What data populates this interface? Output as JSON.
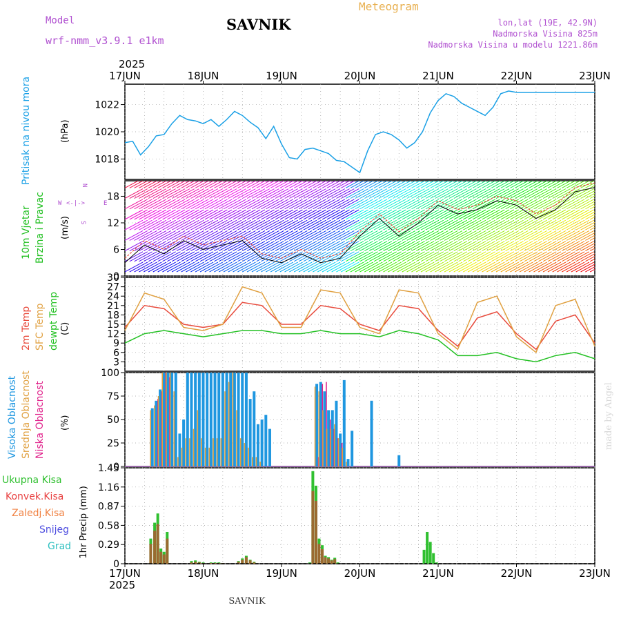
{
  "header": {
    "model_label": "Model",
    "model_name": "wrf-nmm_v3.9.1 e1km",
    "station": "SAVNIK",
    "meteogram_label": "Meteogram",
    "lonlat": "lon,lat (19E, 42.9N)",
    "altitude": "Nadmorska Visina 825m",
    "model_altitude": "Nadmorska Visina u modelu 1221.86m",
    "year": "2025",
    "footer_station": "SAVNIK",
    "credit": "made by Angel"
  },
  "colors": {
    "pressure": "#1aa0e6",
    "temp2m": "#e84a3c",
    "sfc": "#e0a040",
    "dewpt": "#22c022",
    "high_cloud": "#1f97e0",
    "mid_cloud": "#e0a040",
    "low_cloud": "#e0208a",
    "total_precip": "#30c030",
    "convective": "#e84040",
    "frozen": "#f08040",
    "snow": "#5050e0",
    "hail": "#30c0c0",
    "title_purple": "#b050d0",
    "meteogram_orange": "#e8b050"
  },
  "chart_data": [
    {
      "panel": "pressure",
      "type": "line",
      "ylabel": "(hPa)",
      "side_labels": [
        "Pritisak na nivou mora"
      ],
      "yticks": [
        1018,
        1020,
        1022
      ],
      "ylim": [
        1016.5,
        1023.5
      ],
      "x_day_ticks": [
        "17JUN",
        "18JUN",
        "19JUN",
        "20JUN",
        "21JUN",
        "22JUN",
        "23JUN"
      ],
      "x": [
        0,
        0.1,
        0.2,
        0.3,
        0.4,
        0.5,
        0.6,
        0.7,
        0.8,
        0.9,
        1.0,
        1.1,
        1.2,
        1.3,
        1.4,
        1.5,
        1.6,
        1.7,
        1.8,
        1.9,
        2.0,
        2.1,
        2.2,
        2.3,
        2.4,
        2.5,
        2.6,
        2.7,
        2.8,
        2.9,
        3.0,
        3.1,
        3.2,
        3.3,
        3.4,
        3.5,
        3.6,
        3.7,
        3.8,
        3.9,
        4.0,
        4.1,
        4.2,
        4.3,
        4.4,
        4.5,
        4.6,
        4.7,
        4.8,
        4.9,
        5.0,
        5.1,
        5.2,
        5.3,
        5.4,
        5.5,
        5.6,
        5.7,
        5.8,
        5.9,
        6.0
      ],
      "values": [
        1019.2,
        1019.3,
        1018.3,
        1018.9,
        1019.7,
        1019.8,
        1020.6,
        1021.2,
        1020.9,
        1020.8,
        1020.6,
        1020.9,
        1020.4,
        1020.9,
        1021.5,
        1021.2,
        1020.7,
        1020.3,
        1019.5,
        1020.4,
        1019.1,
        1018.1,
        1018.0,
        1018.7,
        1018.8,
        1018.6,
        1018.4,
        1017.9,
        1017.8,
        1017.4,
        1017.0,
        1018.6,
        1019.8,
        1020.0,
        1019.8,
        1019.4,
        1018.8,
        1019.2,
        1020.0,
        1021.4,
        1022.3,
        1022.8,
        1022.6,
        1022.1,
        1021.8,
        1021.5,
        1021.2,
        1021.8,
        1022.8,
        1023.0,
        1022.9,
        1022.9,
        1022.9,
        1022.9,
        1022.9,
        1022.9,
        1022.9,
        1022.9,
        1022.9,
        1022.9,
        1022.9
      ]
    },
    {
      "panel": "wind",
      "type": "line",
      "ylabel": "(m/s)",
      "side_labels": [
        "10m Vjetar",
        "Brzina i Pravac"
      ],
      "compass": [
        "N",
        "E",
        "S",
        "W"
      ],
      "yticks": [
        0,
        6,
        12,
        18
      ],
      "ylim": [
        0,
        21.5
      ],
      "x": [
        0,
        0.25,
        0.5,
        0.75,
        1.0,
        1.25,
        1.5,
        1.75,
        2.0,
        2.25,
        2.5,
        2.75,
        3.0,
        3.25,
        3.5,
        3.75,
        4.0,
        4.25,
        4.5,
        4.75,
        5.0,
        5.25,
        5.5,
        5.75,
        6.0
      ],
      "speed": [
        3,
        7,
        5,
        8,
        6,
        7,
        8,
        4,
        3,
        5,
        3,
        4,
        9,
        13,
        9,
        12,
        16,
        14,
        15,
        17,
        16,
        13,
        15,
        19,
        20
      ],
      "gust": [
        4,
        8,
        6,
        9,
        7,
        8,
        9,
        5,
        4,
        6,
        4,
        5,
        10,
        14,
        10,
        13,
        17,
        15,
        16,
        18,
        17,
        14,
        16,
        20,
        21
      ]
    },
    {
      "panel": "temperature",
      "type": "line",
      "ylabel": "(C)",
      "yticks": [
        3,
        6,
        9,
        12,
        15,
        18,
        21,
        24,
        27,
        30
      ],
      "ylim": [
        0,
        30
      ],
      "x": [
        0,
        0.25,
        0.5,
        0.75,
        1.0,
        1.25,
        1.5,
        1.75,
        2.0,
        2.25,
        2.5,
        2.75,
        3.0,
        3.25,
        3.5,
        3.75,
        4.0,
        4.25,
        4.5,
        4.75,
        5.0,
        5.25,
        5.5,
        5.75,
        6.0
      ],
      "series": [
        {
          "name": "2m Temp",
          "values": [
            14,
            21,
            20,
            15,
            14,
            15,
            22,
            21,
            15,
            15,
            21,
            20,
            15,
            13,
            21,
            20,
            13,
            8,
            17,
            19,
            12,
            7,
            16,
            18,
            9
          ]
        },
        {
          "name": "SFC Temp",
          "values": [
            13,
            25,
            23,
            14,
            13,
            15,
            27,
            25,
            14,
            14,
            26,
            25,
            14,
            12,
            26,
            25,
            12,
            7,
            22,
            24,
            11,
            6,
            21,
            23,
            8
          ]
        },
        {
          "name": "dewpt Temp",
          "values": [
            9,
            12,
            13,
            12,
            11,
            12,
            13,
            13,
            12,
            12,
            13,
            12,
            12,
            11,
            13,
            12,
            10,
            5,
            5,
            6,
            4,
            3,
            5,
            6,
            4
          ]
        }
      ]
    },
    {
      "panel": "clouds",
      "type": "bar",
      "ylabel": "(%)",
      "yticks": [
        0,
        25,
        50,
        75,
        100
      ],
      "ylim": [
        0,
        100
      ],
      "x": [
        0.35,
        0.4,
        0.45,
        0.5,
        0.55,
        0.6,
        0.65,
        0.7,
        0.75,
        0.8,
        0.85,
        0.9,
        0.95,
        1.0,
        1.05,
        1.1,
        1.15,
        1.2,
        1.25,
        1.3,
        1.35,
        1.4,
        1.45,
        1.5,
        1.55,
        1.6,
        1.65,
        1.7,
        1.75,
        1.8,
        1.85,
        2.45,
        2.5,
        2.55,
        2.6,
        2.65,
        2.7,
        2.75,
        2.8,
        2.85,
        2.9,
        3.15,
        3.5
      ],
      "series": [
        {
          "name": "Visoka Oblacnost",
          "values": [
            62,
            70,
            82,
            100,
            100,
            100,
            100,
            35,
            50,
            100,
            100,
            100,
            100,
            100,
            100,
            100,
            100,
            100,
            100,
            100,
            100,
            100,
            100,
            100,
            100,
            72,
            80,
            45,
            50,
            55,
            40,
            88,
            90,
            80,
            60,
            60,
            70,
            35,
            92,
            8,
            38,
            70,
            12
          ]
        },
        {
          "name": "Srednja Oblacnost",
          "values": [
            60,
            65,
            75,
            100,
            100,
            100,
            80,
            10,
            20,
            30,
            30,
            40,
            60,
            30,
            20,
            20,
            30,
            30,
            30,
            80,
            90,
            100,
            60,
            30,
            25,
            20,
            10,
            10,
            5,
            0,
            0,
            85,
            80,
            60,
            40,
            40,
            45,
            30,
            20,
            5,
            0,
            0,
            0
          ]
        },
        {
          "name": "Niska Oblacnost",
          "values": [
            0,
            72,
            80,
            100,
            95,
            0,
            0,
            0,
            0,
            0,
            0,
            0,
            0,
            0,
            0,
            0,
            0,
            0,
            0,
            0,
            0,
            0,
            0,
            0,
            0,
            0,
            0,
            0,
            0,
            0,
            0,
            10,
            88,
            90,
            50,
            40,
            30,
            25,
            0,
            0,
            0,
            0,
            0
          ]
        }
      ]
    },
    {
      "panel": "precip",
      "type": "bar",
      "ylabel": "1hr Precip (mm)",
      "yticks": [
        0,
        0.29,
        0.58,
        0.87,
        1.16,
        1.45
      ],
      "ylim": [
        0,
        1.45
      ],
      "legend": [
        "Ukupna Kisa",
        "Konvek.Kisa",
        "Zaledj.Kisa",
        "Snijeg",
        "Grad"
      ],
      "x": [
        0.33,
        0.38,
        0.42,
        0.46,
        0.5,
        0.54,
        0.85,
        0.9,
        0.95,
        1.0,
        1.1,
        1.15,
        1.2,
        1.25,
        1.45,
        1.5,
        1.55,
        1.6,
        1.65,
        2.36,
        2.4,
        2.44,
        2.48,
        2.52,
        2.56,
        2.6,
        2.64,
        2.68,
        2.72,
        3.82,
        3.86,
        3.9,
        3.94,
        3.98
      ],
      "series": [
        {
          "name": "Ukupna Kisa",
          "values": [
            0.38,
            0.62,
            0.76,
            0.23,
            0.18,
            0.48,
            0.04,
            0.05,
            0.03,
            0.02,
            0.02,
            0.02,
            0.02,
            0.01,
            0.04,
            0.08,
            0.12,
            0.06,
            0.03,
            0.02,
            1.4,
            1.18,
            0.38,
            0.28,
            0.12,
            0.1,
            0.06,
            0.09,
            0.02,
            0.21,
            0.48,
            0.33,
            0.16,
            0.02
          ]
        },
        {
          "name": "Konvek.Kisa",
          "values": [
            0.3,
            0.5,
            0.6,
            0.18,
            0.14,
            0.38,
            0.02,
            0.03,
            0.02,
            0.01,
            0.01,
            0.01,
            0.01,
            0.01,
            0.03,
            0.06,
            0.1,
            0.05,
            0.02,
            0.0,
            1.1,
            0.95,
            0.3,
            0.22,
            0.1,
            0.08,
            0.05,
            0.07,
            0.0,
            0.0,
            0.0,
            0.0,
            0.0,
            0.0
          ]
        }
      ]
    }
  ]
}
